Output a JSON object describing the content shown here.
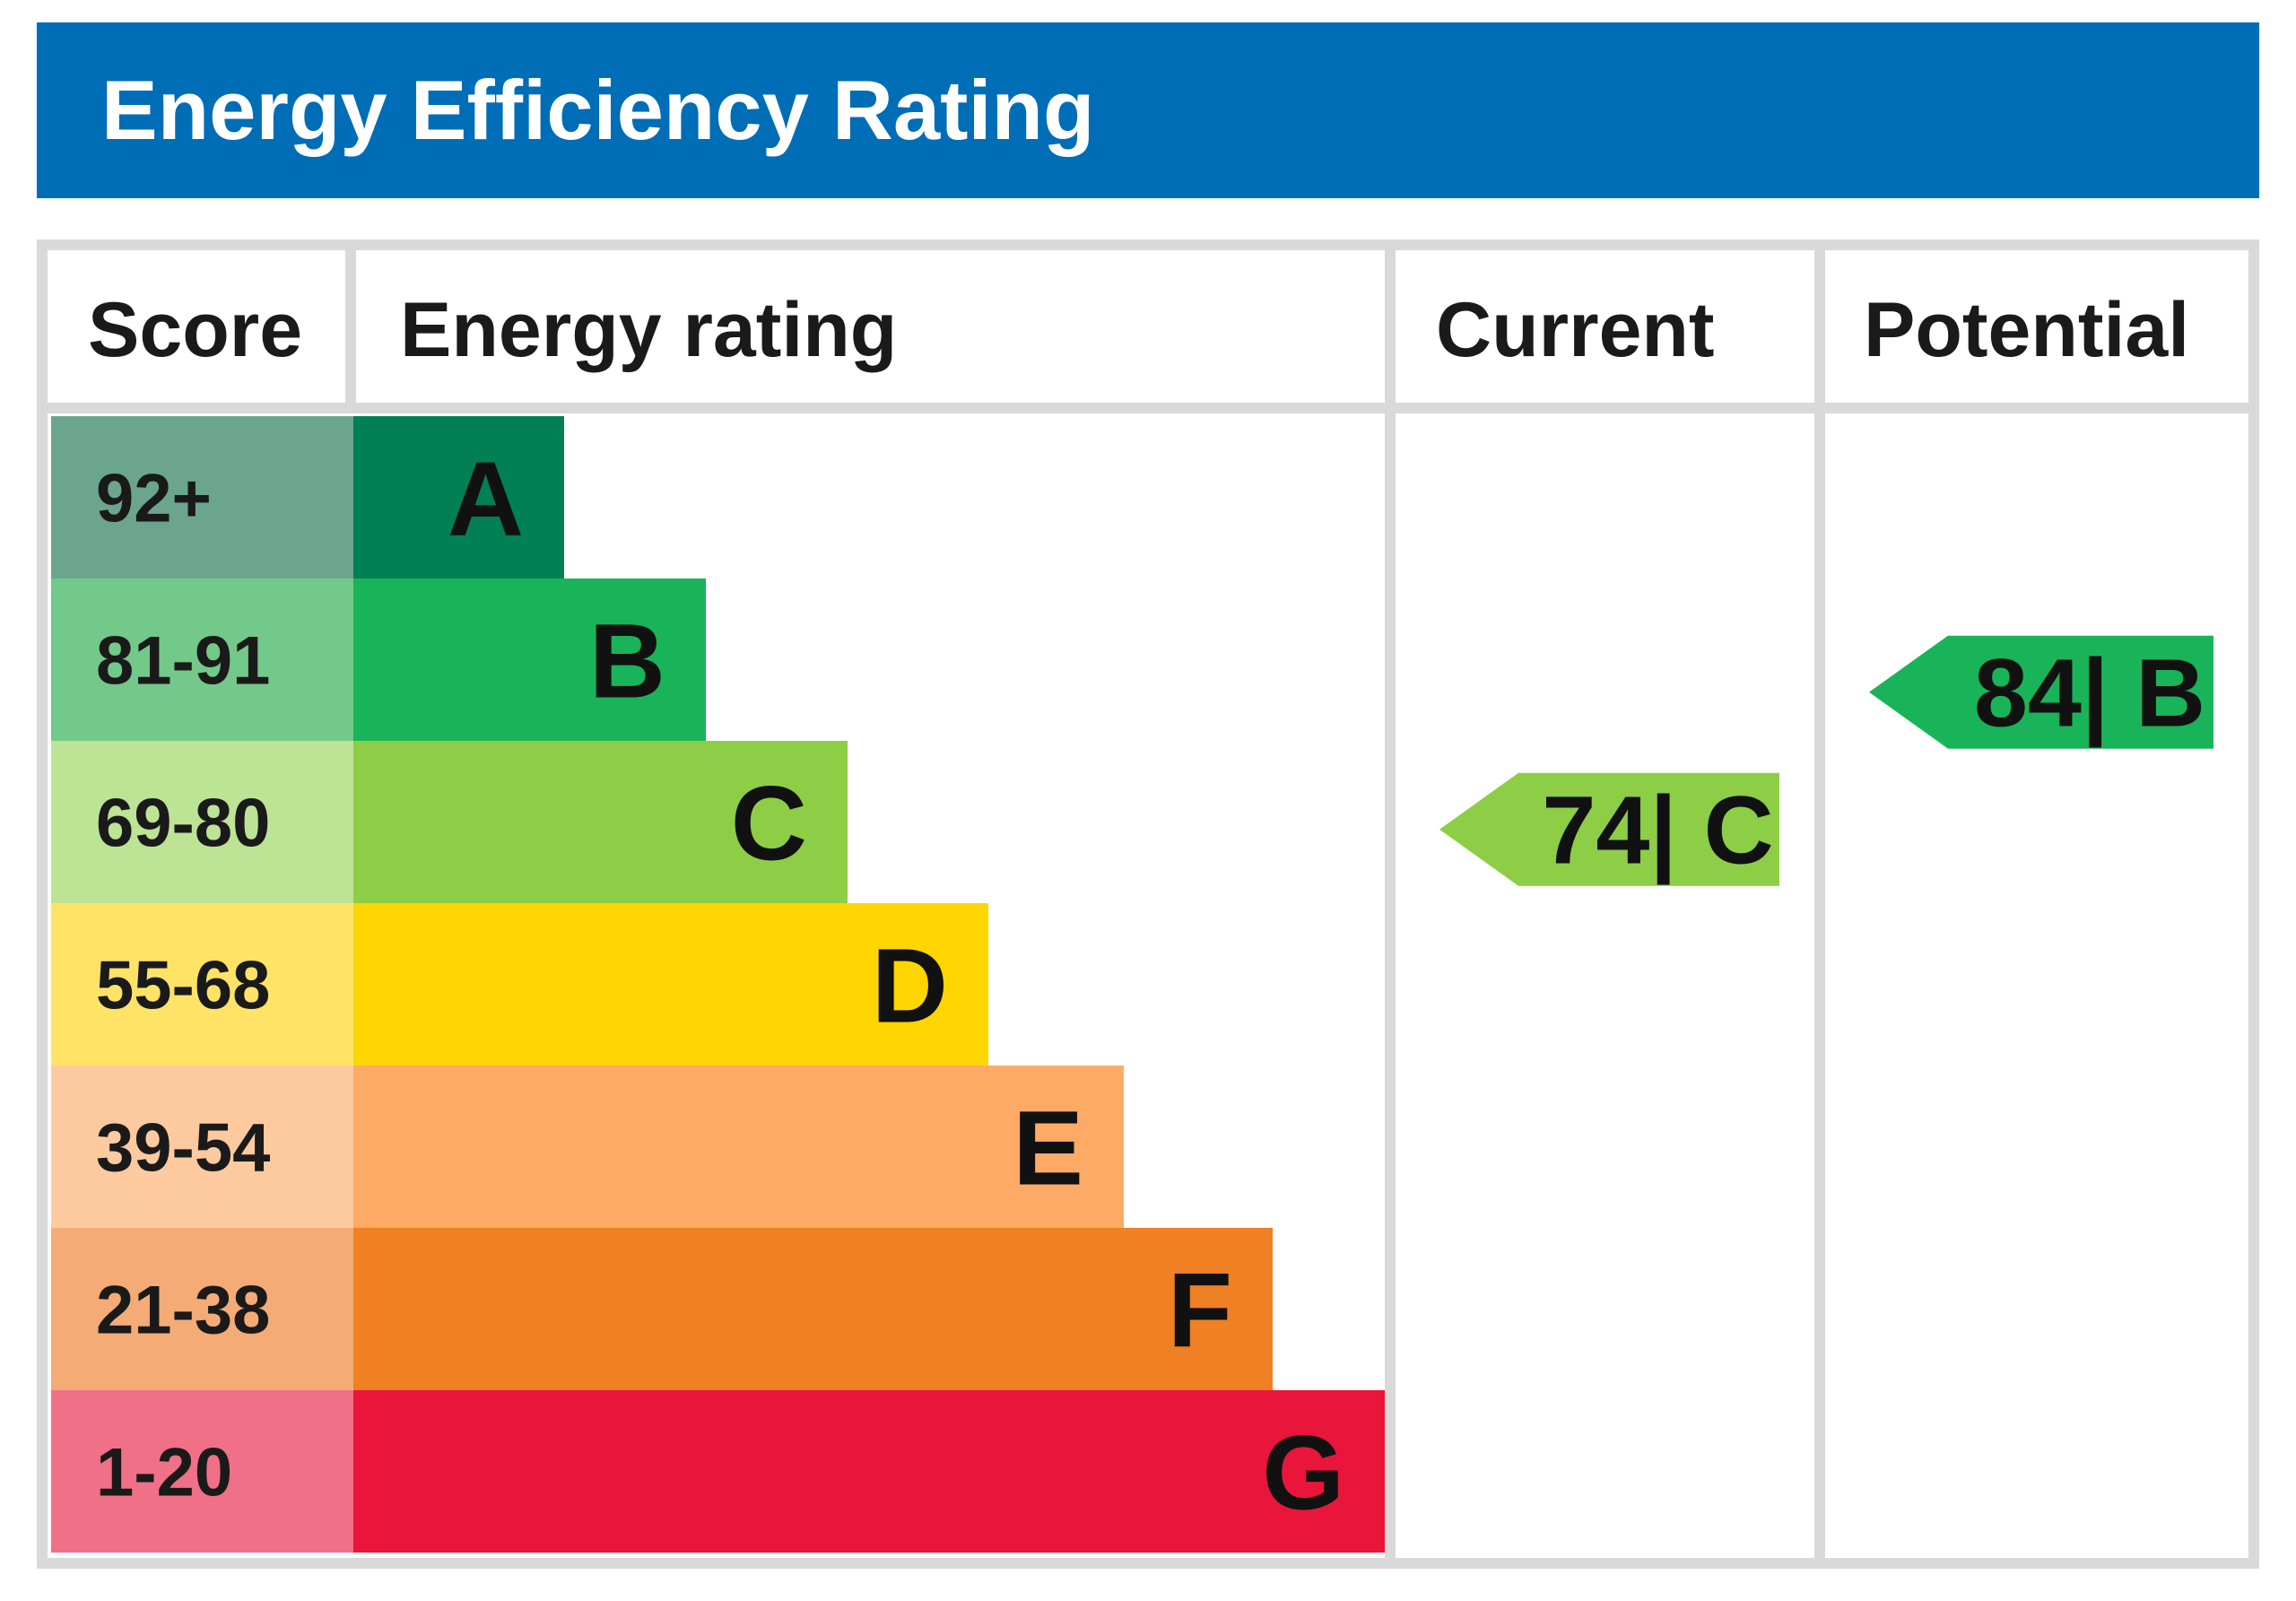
{
  "title": "Energy Efficiency Rating",
  "colors": {
    "title_bar": "#006db7",
    "grid": "#d9d9d9"
  },
  "chart_data": {
    "type": "table",
    "headers": {
      "score": "Score",
      "rating": "Energy rating",
      "current": "Current",
      "potential": "Potential"
    },
    "bands": [
      {
        "letter": "A",
        "range": "92+",
        "min": 92,
        "max": 100,
        "color": "#008054",
        "light": "#6ba58e"
      },
      {
        "letter": "B",
        "range": "81-91",
        "min": 81,
        "max": 91,
        "color": "#19b459",
        "light": "#73c98a"
      },
      {
        "letter": "C",
        "range": "69-80",
        "min": 69,
        "max": 80,
        "color": "#8dce46",
        "light": "#bde395"
      },
      {
        "letter": "D",
        "range": "55-68",
        "min": 55,
        "max": 68,
        "color": "#ffd500",
        "light": "#ffe366"
      },
      {
        "letter": "E",
        "range": "39-54",
        "min": 39,
        "max": 54,
        "color": "#fcaa65",
        "light": "#fdcaa0"
      },
      {
        "letter": "F",
        "range": "21-38",
        "min": 21,
        "max": 38,
        "color": "#ef8023",
        "light": "#f4ab75"
      },
      {
        "letter": "G",
        "range": "1-20",
        "min": 1,
        "max": 20,
        "color": "#e9153b",
        "light": "#f07087"
      }
    ],
    "current": {
      "score": 74,
      "band": "C",
      "label": "74| C",
      "color": "#8dce46"
    },
    "potential": {
      "score": 84,
      "band": "B",
      "label": "84| B",
      "color": "#19b459"
    }
  }
}
